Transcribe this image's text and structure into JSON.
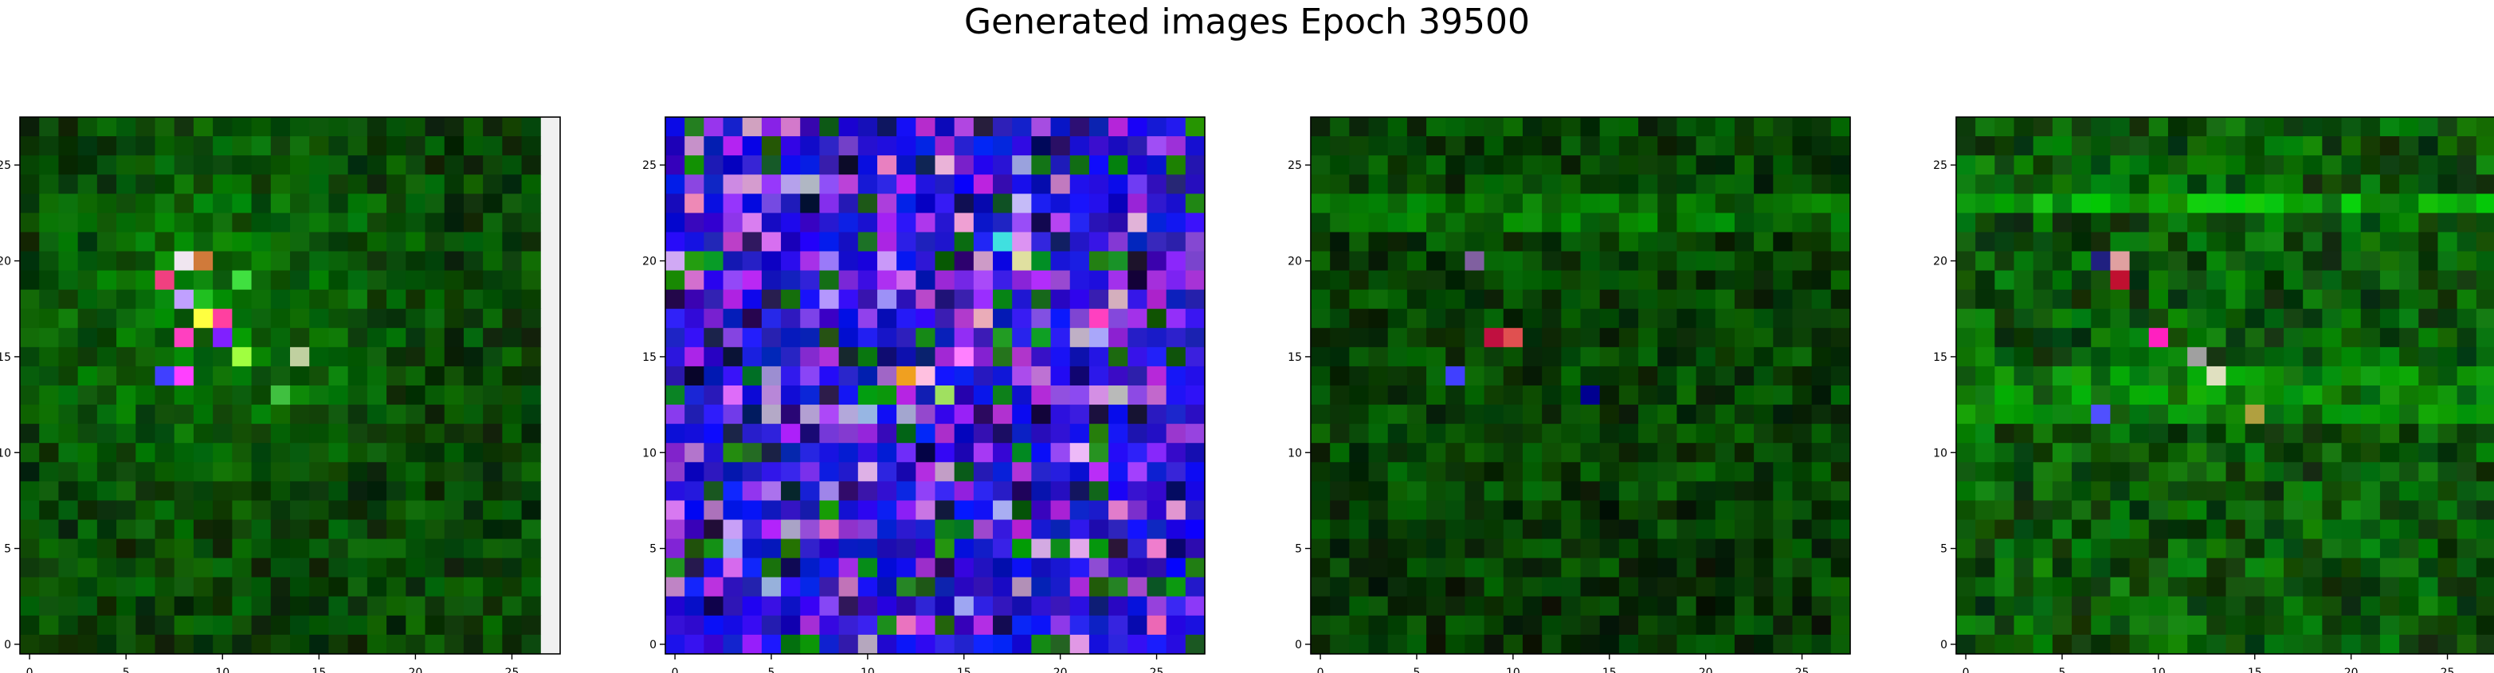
{
  "figure": {
    "title": "Generated images Epoch 39500"
  },
  "chart_data": [
    {
      "type": "heatmap",
      "title": "",
      "xlabel": "",
      "ylabel": "",
      "grid": false,
      "xlim": [
        -0.5,
        27.5
      ],
      "ylim": [
        27.5,
        -0.5
      ],
      "xticks": [
        0,
        5,
        10,
        15,
        20,
        25
      ],
      "yticks": [
        0,
        5,
        10,
        15,
        20,
        25
      ],
      "size": [
        28,
        28
      ],
      "palette": "green",
      "salient_pixels": [
        {
          "row": 7,
          "col": 8,
          "color": "#f0e6f0"
        },
        {
          "row": 7,
          "col": 9,
          "color": "#d07a3a"
        },
        {
          "row": 8,
          "col": 7,
          "color": "#f04080"
        },
        {
          "row": 8,
          "col": 11,
          "color": "#40e040"
        },
        {
          "row": 9,
          "col": 8,
          "color": "#c0a0ff"
        },
        {
          "row": 9,
          "col": 9,
          "color": "#20c020"
        },
        {
          "row": 10,
          "col": 9,
          "color": "#ffff40"
        },
        {
          "row": 10,
          "col": 10,
          "color": "#ff40a0"
        },
        {
          "row": 11,
          "col": 8,
          "color": "#ff40c0"
        },
        {
          "row": 11,
          "col": 10,
          "color": "#8020ff"
        },
        {
          "row": 12,
          "col": 11,
          "color": "#a0ff40"
        },
        {
          "row": 12,
          "col": 14,
          "color": "#c0d0a0"
        },
        {
          "row": 13,
          "col": 7,
          "color": "#4040ff"
        },
        {
          "row": 13,
          "col": 8,
          "color": "#ff40ff"
        },
        {
          "row": 14,
          "col": 13,
          "color": "#40c040"
        }
      ],
      "notes_edge_column": {
        "col": 27,
        "color": "#f0f0f0"
      }
    },
    {
      "type": "heatmap",
      "title": "",
      "xlabel": "",
      "ylabel": "",
      "grid": false,
      "xlim": [
        -0.5,
        27.5
      ],
      "ylim": [
        27.5,
        -0.5
      ],
      "xticks": [
        0,
        5,
        10,
        15,
        20,
        25
      ],
      "yticks": [
        0,
        5,
        10,
        15,
        20,
        25
      ],
      "size": [
        28,
        28
      ],
      "palette": "blue",
      "salient_pixels": [
        {
          "row": 13,
          "col": 12,
          "color": "#f0a020"
        },
        {
          "row": 13,
          "col": 13,
          "color": "#ffc0e0"
        },
        {
          "row": 14,
          "col": 14,
          "color": "#a0e060"
        },
        {
          "row": 12,
          "col": 15,
          "color": "#ff80ff"
        },
        {
          "row": 7,
          "col": 18,
          "color": "#e0e0a0"
        },
        {
          "row": 6,
          "col": 17,
          "color": "#40e0e0"
        },
        {
          "row": 10,
          "col": 22,
          "color": "#ff40c0"
        }
      ]
    },
    {
      "type": "heatmap",
      "title": "",
      "xlabel": "",
      "ylabel": "",
      "grid": false,
      "xlim": [
        -0.5,
        27.5
      ],
      "ylim": [
        27.5,
        -0.5
      ],
      "xticks": [
        0,
        5,
        10,
        15,
        20,
        25
      ],
      "yticks": [
        0,
        5,
        10,
        15,
        20,
        25
      ],
      "size": [
        28,
        28
      ],
      "palette": "darkgreen",
      "salient_pixels": [
        {
          "row": 7,
          "col": 8,
          "color": "#8060a0"
        },
        {
          "row": 11,
          "col": 10,
          "color": "#e05050"
        },
        {
          "row": 11,
          "col": 9,
          "color": "#c01040"
        },
        {
          "row": 13,
          "col": 7,
          "color": "#4040ff"
        },
        {
          "row": 14,
          "col": 14,
          "color": "#000090"
        }
      ]
    },
    {
      "type": "heatmap",
      "title": "",
      "xlabel": "",
      "ylabel": "",
      "grid": false,
      "xlim": [
        -0.5,
        27.5
      ],
      "ylim": [
        27.5,
        -0.5
      ],
      "xticks": [
        0,
        5,
        10,
        15,
        20,
        25
      ],
      "yticks": [
        0,
        5,
        10,
        15,
        20,
        25
      ],
      "size": [
        28,
        28
      ],
      "palette": "brightgreen",
      "salient_pixels": [
        {
          "row": 7,
          "col": 8,
          "color": "#e0a0a0"
        },
        {
          "row": 7,
          "col": 7,
          "color": "#202080"
        },
        {
          "row": 8,
          "col": 8,
          "color": "#c01030"
        },
        {
          "row": 11,
          "col": 10,
          "color": "#ff20c0"
        },
        {
          "row": 12,
          "col": 12,
          "color": "#a0a0a0"
        },
        {
          "row": 13,
          "col": 13,
          "color": "#e0e0c0"
        },
        {
          "row": 15,
          "col": 15,
          "color": "#b0a040"
        },
        {
          "row": 15,
          "col": 7,
          "color": "#5050ff"
        }
      ]
    }
  ]
}
